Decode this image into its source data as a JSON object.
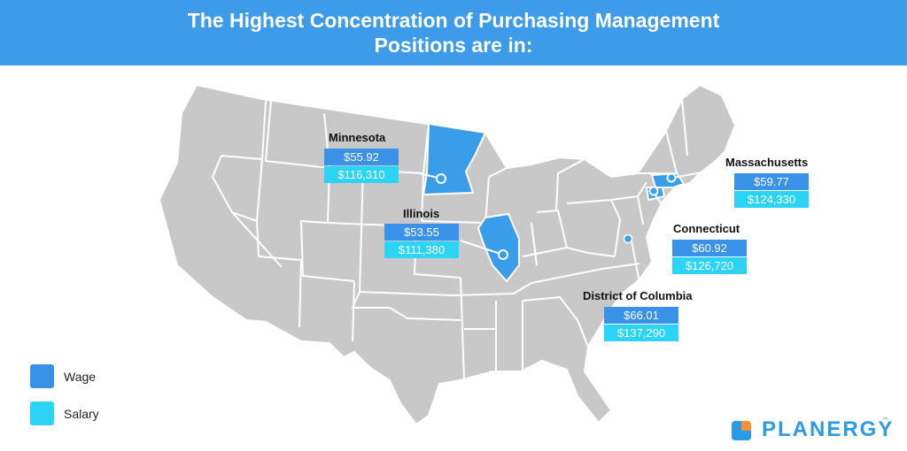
{
  "header": {
    "title_line1": "The Highest Concentration of Purchasing Management",
    "title_line2": "Positions are in:"
  },
  "colors": {
    "header_bg": "#3d9be9",
    "map_state": "#c8c8c8",
    "map_border": "#ffffff",
    "highlight_state": "#3a9de9",
    "wage": "#3a91e8",
    "salary": "#2bd3f5",
    "logo_blue": "#2b9ae8",
    "logo_orange": "#f39233"
  },
  "highlights": [
    {
      "state": "Minnesota",
      "wage": "$55.92",
      "salary": "$116,310"
    },
    {
      "state": "Illinois",
      "wage": "$53.55",
      "salary": "$111,380"
    },
    {
      "state": "Massachusetts",
      "wage": "$59.77",
      "salary": "$124,330"
    },
    {
      "state": "Connecticut",
      "wage": "$60.92",
      "salary": "$126,720"
    },
    {
      "state": "District of Columbia",
      "wage": "$66.01",
      "salary": "$137,290"
    }
  ],
  "legend": [
    {
      "label": "Wage",
      "color": "#3a91e8"
    },
    {
      "label": "Salary",
      "color": "#2bd3f5"
    }
  ],
  "logo": {
    "text": "PLANERGY",
    "tm": "™",
    "icon": "planergy-logo-icon"
  }
}
